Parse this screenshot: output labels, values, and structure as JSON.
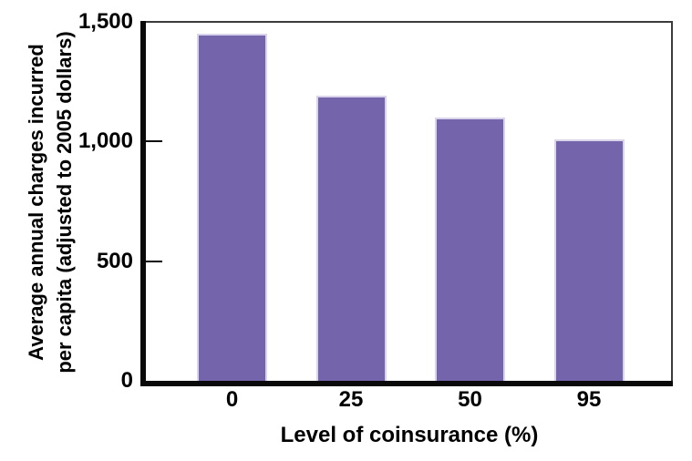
{
  "chart_data": {
    "type": "bar",
    "title": "",
    "categories": [
      "0",
      "25",
      "50",
      "95"
    ],
    "values": [
      1450,
      1190,
      1100,
      1010
    ],
    "xlabel": "Level of coinsurance (%)",
    "ylabel": "Average annual charges incurred per capita (adjusted to 2005 dollars)",
    "ylabel_lines": [
      "Average annual charges incurred",
      "per capita (adjusted to 2005 dollars)"
    ],
    "ytick_values": [
      0,
      500,
      1000,
      1500
    ],
    "ytick_labels": [
      "0",
      "500",
      "1,000",
      "1,500"
    ],
    "ylim": [
      0,
      1500
    ],
    "grid": false,
    "legend": "none",
    "colors": {
      "bar_fill": "#7464AC",
      "bar_edge": "#DAD4EB",
      "axis": "#0a0a0a",
      "frame": "#3B3B3B",
      "text": "#000000",
      "background": "#FFFFFF"
    }
  }
}
